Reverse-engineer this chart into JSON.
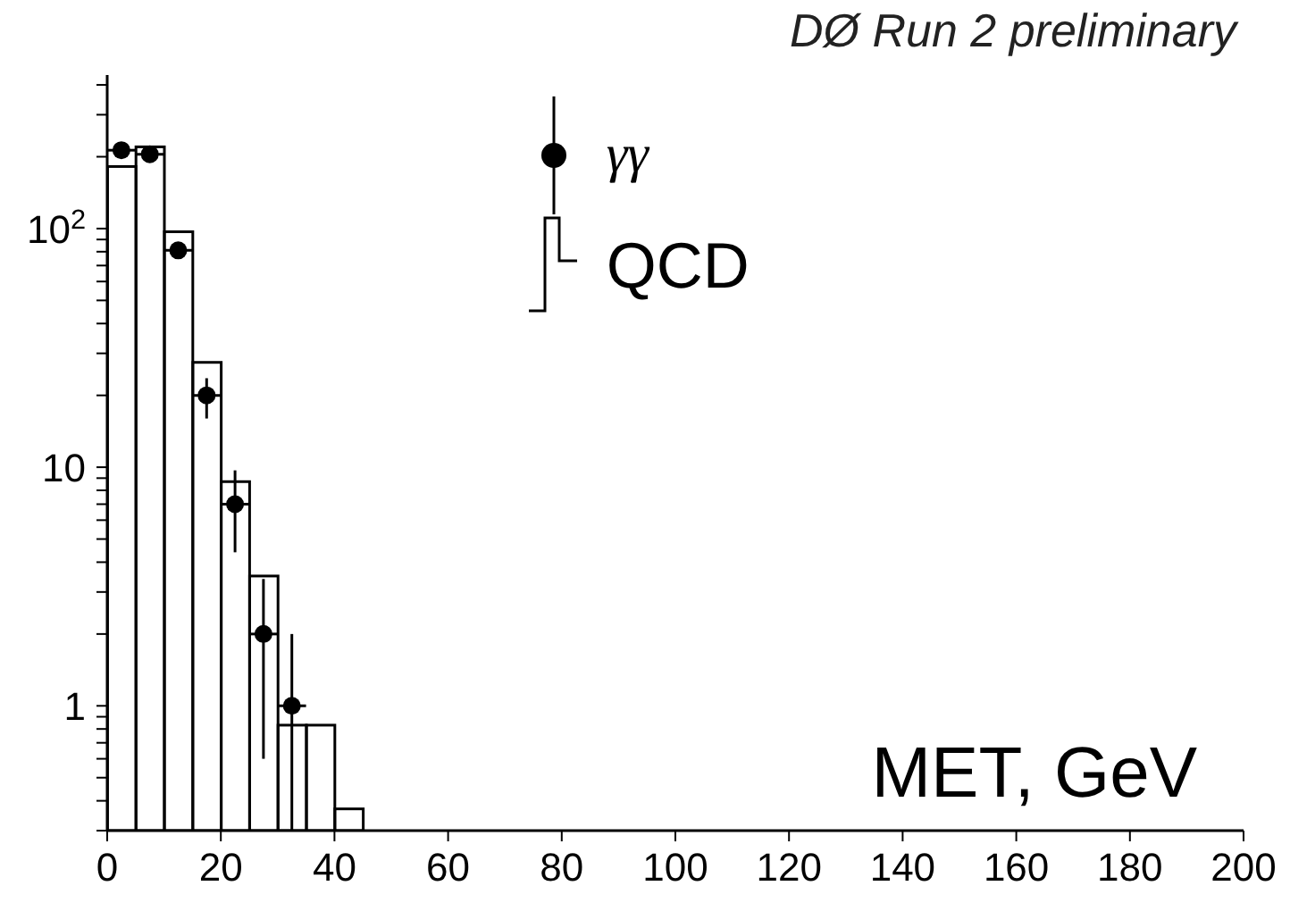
{
  "chart_data": {
    "type": "histogram",
    "title": "DØ Run 2 preliminary",
    "xlabel": "MET, GeV",
    "log": "y",
    "grid": false,
    "legend": "top",
    "marker": "circle",
    "xlim": [
      0,
      200
    ],
    "xticks": [
      0,
      20,
      40,
      60,
      80,
      100,
      120,
      140,
      160,
      180,
      200
    ],
    "ylim": [
      0.3,
      440
    ],
    "yticks": [
      {
        "value": 0.3,
        "label": null
      },
      {
        "value": 0.4,
        "label": null
      },
      {
        "value": 0.5,
        "label": null
      },
      {
        "value": 0.6,
        "label": null
      },
      {
        "value": 0.7,
        "label": null
      },
      {
        "value": 0.8,
        "label": null
      },
      {
        "value": 0.9,
        "label": null
      },
      1,
      {
        "value": 2,
        "label": null
      },
      {
        "value": 3,
        "label": null
      },
      {
        "value": 4,
        "label": null
      },
      {
        "value": 5,
        "label": null
      },
      {
        "value": 6,
        "label": null
      },
      {
        "value": 7,
        "label": null
      },
      {
        "value": 8,
        "label": null
      },
      {
        "value": 9,
        "label": null
      },
      10,
      {
        "value": 20,
        "label": null
      },
      {
        "value": 30,
        "label": null
      },
      {
        "value": 40,
        "label": null
      },
      {
        "value": 50,
        "label": null
      },
      {
        "value": 60,
        "label": null
      },
      {
        "value": 70,
        "label": null
      },
      {
        "value": 80,
        "label": null
      },
      {
        "value": 90,
        "label": null
      },
      {
        "value": 100,
        "label": "10$^{2}$"
      },
      {
        "value": 200,
        "label": null
      },
      {
        "value": 300,
        "label": null
      },
      {
        "value": 400,
        "label": null
      }
    ],
    "series": [
      {
        "name": "γγ",
        "type": "scatter",
        "color": "#000000",
        "x": [
          2.5,
          7.5,
          12.5,
          17.5,
          22.5,
          27.5,
          32.5
        ],
        "values": [
          213,
          205,
          81,
          20,
          7,
          2,
          1
        ],
        "errors": [
          null,
          null,
          null,
          [
            16,
            23.6
          ],
          [
            4.4,
            9.7
          ],
          [
            0.6,
            3.4
          ],
          [
            0.3,
            2
          ]
        ],
        "xerrors": [
          2.5,
          2.5,
          2.5,
          2.5,
          2.5,
          2.5,
          2.5
        ]
      },
      {
        "name": "QCD",
        "type": "histogram",
        "color": "#000000",
        "bins": [
          0,
          5,
          10,
          15,
          20,
          25,
          30,
          35,
          40,
          45
        ],
        "values": [
          182,
          220,
          97,
          27.5,
          8.7,
          3.5,
          0.83,
          0.83,
          0.37
        ]
      }
    ]
  }
}
